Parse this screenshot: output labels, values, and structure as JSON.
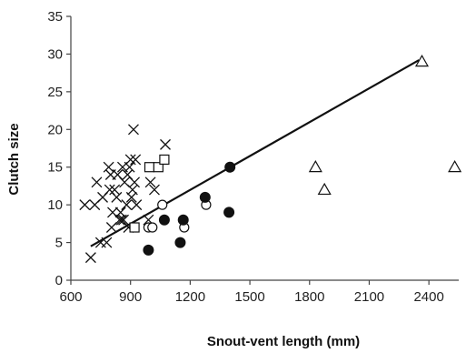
{
  "chart_data": {
    "type": "scatter",
    "title": "",
    "xlabel": "Snout-vent length (mm)",
    "ylabel": "Clutch size",
    "xlim": [
      600,
      2550
    ],
    "ylim": [
      0,
      35
    ],
    "xticks": [
      600,
      900,
      1200,
      1500,
      1800,
      2100,
      2400
    ],
    "yticks": [
      0,
      5,
      10,
      15,
      20,
      25,
      30,
      35
    ],
    "grid": false,
    "legend": "none",
    "colors": {
      "ink": "#111111",
      "axis": "#444444",
      "background": "#ffffff"
    },
    "series": [
      {
        "marker": "cross",
        "points": [
          [
            670,
            10
          ],
          [
            700,
            3
          ],
          [
            720,
            10
          ],
          [
            730,
            13
          ],
          [
            750,
            5
          ],
          [
            760,
            11
          ],
          [
            780,
            5
          ],
          [
            790,
            15
          ],
          [
            795,
            12
          ],
          [
            800,
            14
          ],
          [
            805,
            7
          ],
          [
            810,
            9
          ],
          [
            820,
            12
          ],
          [
            830,
            11
          ],
          [
            835,
            14
          ],
          [
            845,
            8
          ],
          [
            850,
            9
          ],
          [
            855,
            8
          ],
          [
            860,
            15
          ],
          [
            865,
            8
          ],
          [
            870,
            13
          ],
          [
            880,
            10
          ],
          [
            885,
            14
          ],
          [
            890,
            7
          ],
          [
            895,
            15
          ],
          [
            900,
            16
          ],
          [
            905,
            11
          ],
          [
            910,
            12
          ],
          [
            915,
            20
          ],
          [
            920,
            13
          ],
          [
            925,
            16
          ],
          [
            930,
            10
          ],
          [
            990,
            8
          ],
          [
            1000,
            13
          ],
          [
            1020,
            12
          ],
          [
            1075,
            18
          ]
        ]
      },
      {
        "marker": "open-square",
        "points": [
          [
            920,
            7
          ],
          [
            995,
            15
          ],
          [
            1040,
            15
          ],
          [
            1070,
            16
          ]
        ]
      },
      {
        "marker": "open-circle",
        "points": [
          [
            990,
            7
          ],
          [
            1010,
            7
          ],
          [
            1060,
            10
          ],
          [
            1165,
            8
          ],
          [
            1170,
            7
          ],
          [
            1280,
            10
          ]
        ]
      },
      {
        "marker": "filled-circle",
        "points": [
          [
            990,
            4
          ],
          [
            1070,
            8
          ],
          [
            1150,
            5
          ],
          [
            1165,
            8
          ],
          [
            1275,
            11
          ],
          [
            1395,
            9
          ],
          [
            1400,
            15
          ]
        ]
      },
      {
        "marker": "open-triangle",
        "points": [
          [
            1830,
            15
          ],
          [
            1875,
            12
          ],
          [
            2365,
            29
          ],
          [
            2530,
            15
          ]
        ]
      }
    ],
    "trendline": {
      "x": [
        700,
        2350
      ],
      "y": [
        4.5,
        29.2
      ]
    }
  }
}
